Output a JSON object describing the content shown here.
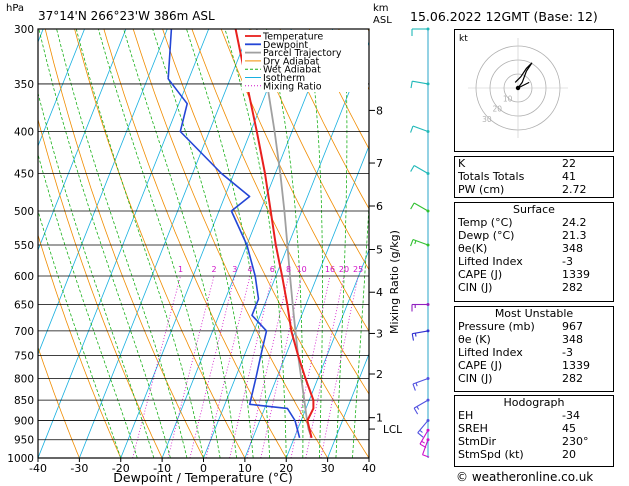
{
  "header": {
    "location": "37°14'N  266°23'W  386m  ASL",
    "date": "15.06.2022  12GMT  (Base: 12)",
    "hpa_label": "hPa",
    "km_label": "km",
    "asl_label": "ASL"
  },
  "chart_data": {
    "type": "line",
    "subtype": "skew-T log-P",
    "xlabel": "Dewpoint / Temperature (°C)",
    "ylabel_right": "Mixing Ratio (g/kg)",
    "xlim": [
      -40,
      40
    ],
    "ylim": [
      1000,
      300
    ],
    "y_scale": "log",
    "x_ticks": [
      "-40",
      "-30",
      "-20",
      "-10",
      "0",
      "10",
      "20",
      "30",
      "40"
    ],
    "pressure_levels": [
      "300",
      "350",
      "400",
      "450",
      "500",
      "550",
      "600",
      "650",
      "700",
      "750",
      "800",
      "850",
      "900",
      "950",
      "1000"
    ],
    "km_ticks": [
      {
        "p": 377,
        "label": "8"
      },
      {
        "p": 437,
        "label": "7"
      },
      {
        "p": 493,
        "label": "6"
      },
      {
        "p": 557,
        "label": "5"
      },
      {
        "p": 628,
        "label": "4"
      },
      {
        "p": 705,
        "label": "3"
      },
      {
        "p": 790,
        "label": "2"
      },
      {
        "p": 893,
        "label": "1"
      }
    ],
    "lcl": {
      "p": 922,
      "label": "LCL"
    },
    "mixing_ratio_labels": [
      "1",
      "2",
      "3",
      "4",
      "6",
      "8",
      "10",
      "16",
      "20",
      "25"
    ],
    "mixing_ratio_values": [
      1,
      2,
      3,
      4,
      6,
      8,
      10,
      16,
      20,
      25
    ],
    "legend": [
      "Temperature",
      "Dewpoint",
      "Parcel Trajectory",
      "Dry Adiabat",
      "Wet Adiabat",
      "Isotherm",
      "Mixing Ratio"
    ],
    "legend_placement": "top-right of diagram",
    "colors": {
      "temperature": "#e8201e",
      "dewpoint": "#2446d6",
      "parcel": "#a0a0a0",
      "dry_adiabat": "#f08c00",
      "wet_adiabat": "#18b018",
      "isotherm": "#18b0e0",
      "mixing_ratio": "#d010c8"
    },
    "series": [
      {
        "name": "Temperature",
        "points": [
          [
            945,
            24.2
          ],
          [
            900,
            21.5
          ],
          [
            870,
            21.8
          ],
          [
            850,
            21.0
          ],
          [
            800,
            17.0
          ],
          [
            750,
            13.0
          ],
          [
            700,
            9.0
          ],
          [
            650,
            5.5
          ],
          [
            600,
            1.5
          ],
          [
            550,
            -3.0
          ],
          [
            500,
            -7.5
          ],
          [
            450,
            -12.5
          ],
          [
            400,
            -18.5
          ],
          [
            350,
            -25.5
          ],
          [
            300,
            -33.5
          ]
        ]
      },
      {
        "name": "Dewpoint",
        "points": [
          [
            945,
            21.3
          ],
          [
            900,
            18.5
          ],
          [
            870,
            15.5
          ],
          [
            860,
            6.0
          ],
          [
            800,
            5.0
          ],
          [
            750,
            4.0
          ],
          [
            700,
            3.0
          ],
          [
            670,
            -2.0
          ],
          [
            640,
            -2.0
          ],
          [
            600,
            -5.0
          ],
          [
            550,
            -10.0
          ],
          [
            500,
            -17.0
          ],
          [
            480,
            -14.0
          ],
          [
            450,
            -23.0
          ],
          [
            400,
            -37.0
          ],
          [
            370,
            -38.0
          ],
          [
            345,
            -45.0
          ],
          [
            300,
            -49.0
          ]
        ]
      },
      {
        "name": "Parcel Trajectory",
        "points": [
          [
            945,
            24.2
          ],
          [
            922,
            22.6
          ],
          [
            900,
            21.4
          ],
          [
            850,
            18.8
          ],
          [
            800,
            16.0
          ],
          [
            750,
            13.0
          ],
          [
            700,
            10.0
          ],
          [
            650,
            6.8
          ],
          [
            600,
            3.4
          ],
          [
            550,
            -0.2
          ],
          [
            500,
            -4.2
          ],
          [
            450,
            -8.8
          ],
          [
            400,
            -14.2
          ],
          [
            350,
            -20.6
          ],
          [
            300,
            -28.4
          ]
        ]
      }
    ]
  },
  "hodograph": {
    "label": "kt",
    "ring_labels": [
      "10",
      "20",
      "30"
    ],
    "points": [
      [
        0,
        0
      ],
      [
        3,
        4
      ],
      [
        6,
        12
      ],
      [
        10,
        18
      ],
      [
        6,
        14
      ],
      [
        2,
        8
      ],
      [
        -2,
        4
      ],
      [
        0,
        6
      ]
    ],
    "storm_motion": [
      [
        0,
        0
      ],
      [
        8,
        4
      ]
    ]
  },
  "wind_barbs": [
    {
      "p": 950,
      "dir": 200,
      "spd": 10,
      "color": "#cc10cc"
    },
    {
      "p": 925,
      "dir": 210,
      "spd": 15,
      "color": "#cc10cc"
    },
    {
      "p": 900,
      "dir": 220,
      "spd": 15,
      "color": "#5050e0"
    },
    {
      "p": 850,
      "dir": 240,
      "spd": 15,
      "color": "#5050e0"
    },
    {
      "p": 800,
      "dir": 250,
      "spd": 15,
      "color": "#5050e0"
    },
    {
      "p": 700,
      "dir": 260,
      "spd": 15,
      "color": "#3030d0"
    },
    {
      "p": 650,
      "dir": 270,
      "spd": 15,
      "color": "#9020c0"
    },
    {
      "p": 550,
      "dir": 290,
      "spd": 15,
      "color": "#30c030"
    },
    {
      "p": 500,
      "dir": 300,
      "spd": 10,
      "color": "#30c030"
    },
    {
      "p": 450,
      "dir": 300,
      "spd": 10,
      "color": "#20b8b8"
    },
    {
      "p": 400,
      "dir": 290,
      "spd": 10,
      "color": "#20b8b8"
    },
    {
      "p": 350,
      "dir": 280,
      "spd": 10,
      "color": "#20b8b8"
    },
    {
      "p": 300,
      "dir": 270,
      "spd": 10,
      "color": "#20b8b8"
    }
  ],
  "indices": {
    "rows": [
      {
        "label": "K",
        "value": "22"
      },
      {
        "label": "Totals Totals",
        "value": "41"
      },
      {
        "label": "PW (cm)",
        "value": "2.72"
      }
    ]
  },
  "surface": {
    "title": "Surface",
    "rows": [
      {
        "label": "Temp (°C)",
        "value": "24.2"
      },
      {
        "label": "Dewp (°C)",
        "value": "21.3"
      },
      {
        "label": "θe(K)",
        "value": "348"
      },
      {
        "label": "Lifted Index",
        "value": "-3"
      },
      {
        "label": "CAPE (J)",
        "value": "1339"
      },
      {
        "label": "CIN (J)",
        "value": "282"
      }
    ]
  },
  "most_unstable": {
    "title": "Most Unstable",
    "rows": [
      {
        "label": "Pressure (mb)",
        "value": "967"
      },
      {
        "label": "θe (K)",
        "value": "348"
      },
      {
        "label": "Lifted Index",
        "value": "-3"
      },
      {
        "label": "CAPE (J)",
        "value": "1339"
      },
      {
        "label": "CIN (J)",
        "value": "282"
      }
    ]
  },
  "hodo_params": {
    "title": "Hodograph",
    "rows": [
      {
        "label": "EH",
        "value": "-34"
      },
      {
        "label": "SREH",
        "value": "45"
      },
      {
        "label": "StmDir",
        "value": "230°"
      },
      {
        "label": "StmSpd (kt)",
        "value": "20"
      }
    ]
  },
  "footer": {
    "credit": "© weatheronline.co.uk"
  }
}
